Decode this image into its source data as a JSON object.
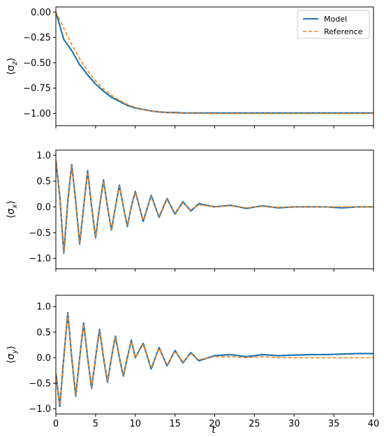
{
  "figure": {
    "shared_xlabel": "t",
    "xlim": [
      0,
      40
    ],
    "xticks": [
      0,
      5,
      10,
      15,
      20,
      25,
      30,
      35,
      40
    ],
    "legend": {
      "placement": "top-right",
      "entries": [
        "Model",
        "Reference"
      ]
    }
  },
  "colors": {
    "model": "#1f77b4",
    "reference": "#ff7f0e"
  },
  "chart_data": [
    {
      "type": "line",
      "ylabel": "⟨σz⟩",
      "ylabel_base": "⟨σ",
      "ylabel_sub": "z",
      "ylabel_end": "⟩",
      "ylim": [
        -1.12,
        0.05
      ],
      "yticks": [
        0.0,
        -0.25,
        -0.5,
        -0.75,
        -1.0
      ],
      "ytick_labels": [
        "0.00",
        "−0.25",
        "−0.50",
        "−0.75",
        "−1.00"
      ],
      "legend": true,
      "x": [
        0,
        1,
        2,
        3,
        4,
        5,
        6,
        7,
        8,
        9,
        10,
        11,
        12,
        13,
        14,
        15,
        16,
        17,
        18,
        19,
        20,
        22,
        24,
        26,
        28,
        30,
        32,
        34,
        36,
        38,
        40
      ],
      "series": [
        {
          "name": "Reference",
          "values": [
            0.0,
            -0.16,
            -0.32,
            -0.46,
            -0.58,
            -0.68,
            -0.76,
            -0.82,
            -0.87,
            -0.91,
            -0.94,
            -0.96,
            -0.975,
            -0.985,
            -0.99,
            -0.995,
            -0.997,
            -0.998,
            -0.999,
            -1.0,
            -1.0,
            -1.0,
            -1.0,
            -1.0,
            -1.0,
            -1.0,
            -1.0,
            -1.0,
            -1.0,
            -1.0,
            -1.0
          ]
        },
        {
          "name": "Model",
          "values": [
            0.0,
            -0.27,
            -0.38,
            -0.52,
            -0.62,
            -0.71,
            -0.78,
            -0.84,
            -0.88,
            -0.92,
            -0.945,
            -0.96,
            -0.975,
            -0.985,
            -0.99,
            -0.99,
            -0.995,
            -0.995,
            -0.995,
            -0.995,
            -0.995,
            -0.995,
            -0.995,
            -0.995,
            -0.995,
            -0.995,
            -0.995,
            -0.995,
            -0.995,
            -0.995,
            -0.995
          ]
        }
      ]
    },
    {
      "type": "line",
      "ylabel": "⟨σx⟩",
      "ylabel_base": "⟨σ",
      "ylabel_sub": "x",
      "ylabel_end": "⟩",
      "ylim": [
        -1.2,
        1.1
      ],
      "yticks": [
        1.0,
        0.5,
        0.0,
        -0.5,
        -1.0
      ],
      "ytick_labels": [
        "1.0",
        "0.5",
        "0.0",
        "−0.5",
        "−1.0"
      ],
      "legend": false,
      "x": [
        0,
        0.5,
        1,
        1.5,
        2,
        2.5,
        3,
        3.5,
        4,
        4.5,
        5,
        5.5,
        6,
        6.5,
        7,
        7.5,
        8,
        8.5,
        9,
        9.5,
        10,
        11,
        12,
        13,
        14,
        15,
        16,
        17,
        18,
        20,
        22,
        24,
        26,
        28,
        30,
        32,
        34,
        36,
        38,
        40
      ],
      "series": [
        {
          "name": "Model",
          "values": [
            0.9,
            0.2,
            -0.9,
            0.1,
            0.82,
            0.1,
            -0.72,
            0.0,
            0.7,
            0.0,
            -0.6,
            0.0,
            0.52,
            0.0,
            -0.45,
            0.0,
            0.42,
            0.0,
            -0.38,
            0.0,
            0.3,
            -0.28,
            0.22,
            -0.2,
            0.16,
            -0.14,
            0.1,
            -0.08,
            0.06,
            0.0,
            0.03,
            -0.03,
            0.02,
            -0.02,
            0.0,
            0.0,
            0.0,
            -0.02,
            0.0,
            0.0
          ]
        },
        {
          "name": "Reference",
          "values": [
            0.9,
            0.2,
            -0.88,
            0.1,
            0.8,
            0.1,
            -0.7,
            0.0,
            0.68,
            0.0,
            -0.58,
            0.0,
            0.5,
            0.0,
            -0.44,
            0.0,
            0.4,
            0.0,
            -0.36,
            0.0,
            0.28,
            -0.26,
            0.2,
            -0.18,
            0.14,
            -0.12,
            0.08,
            -0.06,
            0.04,
            0.0,
            0.02,
            -0.02,
            0.01,
            -0.01,
            0.0,
            0.0,
            0.0,
            0.0,
            0.0,
            0.0
          ]
        }
      ]
    },
    {
      "type": "line",
      "ylabel": "⟨σy⟩",
      "ylabel_base": "⟨σ",
      "ylabel_sub": "y",
      "ylabel_end": "⟩",
      "ylim": [
        -1.1,
        1.22
      ],
      "yticks": [
        1.0,
        0.5,
        0.0,
        -0.5,
        -1.0
      ],
      "ytick_labels": [
        "1.0",
        "0.5",
        "0.0",
        "−0.5",
        "−1.0"
      ],
      "legend": false,
      "x": [
        0,
        0.5,
        1,
        1.5,
        2,
        2.5,
        3,
        3.5,
        4,
        4.5,
        5,
        5.5,
        6,
        6.5,
        7,
        7.5,
        8,
        8.5,
        9,
        9.5,
        10,
        11,
        12,
        13,
        14,
        15,
        16,
        17,
        18,
        20,
        22,
        24,
        26,
        28,
        30,
        32,
        34,
        36,
        38,
        40
      ],
      "series": [
        {
          "name": "Model",
          "values": [
            -0.3,
            -0.95,
            0.0,
            0.88,
            0.0,
            -0.75,
            0.0,
            0.68,
            0.0,
            -0.6,
            0.0,
            0.55,
            0.0,
            -0.48,
            0.0,
            0.42,
            0.0,
            -0.36,
            0.0,
            0.34,
            0.0,
            0.28,
            -0.22,
            0.2,
            -0.16,
            0.14,
            -0.1,
            0.1,
            -0.06,
            0.04,
            0.06,
            0.02,
            0.06,
            0.04,
            0.05,
            0.06,
            0.06,
            0.07,
            0.08,
            0.08
          ]
        },
        {
          "name": "Reference",
          "values": [
            -0.3,
            -0.93,
            0.0,
            0.86,
            0.0,
            -0.74,
            0.0,
            0.66,
            0.0,
            -0.58,
            0.0,
            0.52,
            0.0,
            -0.46,
            0.0,
            0.4,
            0.0,
            -0.34,
            0.0,
            0.32,
            0.0,
            0.26,
            -0.2,
            0.18,
            -0.14,
            0.12,
            -0.08,
            0.08,
            -0.04,
            0.02,
            0.02,
            0.0,
            0.02,
            0.0,
            0.0,
            0.0,
            0.0,
            0.0,
            0.0,
            0.0
          ]
        }
      ]
    }
  ]
}
